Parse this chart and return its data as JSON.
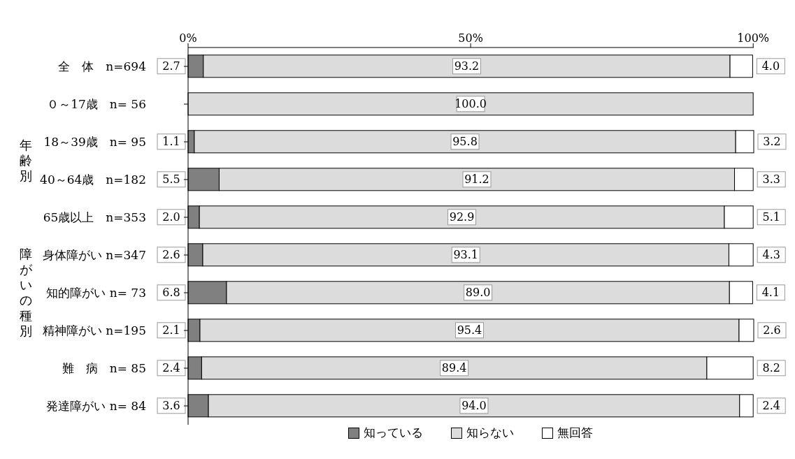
{
  "chart_data": {
    "type": "bar",
    "orientation": "horizontal",
    "stacked": true,
    "categories": [
      "全　体　n=694",
      "０～17歳　n= 56",
      "18～39歳　n= 95",
      "40～64歳　n=182",
      "65歳以上　n=353",
      "身体障がい n=347",
      "知的障がい n= 73",
      "精神障がい n=195",
      "難　病　n= 85",
      "発達障がい n= 84"
    ],
    "series": [
      {
        "name": "知っている",
        "color": "#808080",
        "values": [
          2.7,
          0,
          1.1,
          5.5,
          2.0,
          2.6,
          6.8,
          2.1,
          2.4,
          3.6
        ],
        "value_labels": [
          "2.7",
          null,
          "1.1",
          "5.5",
          "2.0",
          "2.6",
          "6.8",
          "2.1",
          "2.4",
          "3.6"
        ]
      },
      {
        "name": "知らない",
        "color": "#dcdcdc",
        "values": [
          93.2,
          100.0,
          95.8,
          91.2,
          92.9,
          93.1,
          89.0,
          95.4,
          89.4,
          94.0
        ],
        "value_labels": [
          "93.2",
          "100.0",
          "95.8",
          "91.2",
          "92.9",
          "93.1",
          "89.0",
          "95.4",
          "89.4",
          "94.0"
        ]
      },
      {
        "name": "無回答",
        "color": "#ffffff",
        "values": [
          4.0,
          0,
          3.2,
          3.3,
          5.1,
          4.3,
          4.1,
          2.6,
          8.2,
          2.4
        ],
        "value_labels": [
          "4.0",
          null,
          "3.2",
          "3.3",
          "5.1",
          "4.3",
          "4.1",
          "2.6",
          "8.2",
          "2.4"
        ]
      }
    ],
    "xlim": [
      0,
      100
    ],
    "xticks": [
      {
        "value": 0,
        "label": "0%"
      },
      {
        "value": 50,
        "label": "50%"
      },
      {
        "value": 100,
        "label": "100%"
      }
    ],
    "grid": false,
    "legend": "bottom",
    "annotations": [
      "年齢別",
      "障がいの種別"
    ]
  }
}
